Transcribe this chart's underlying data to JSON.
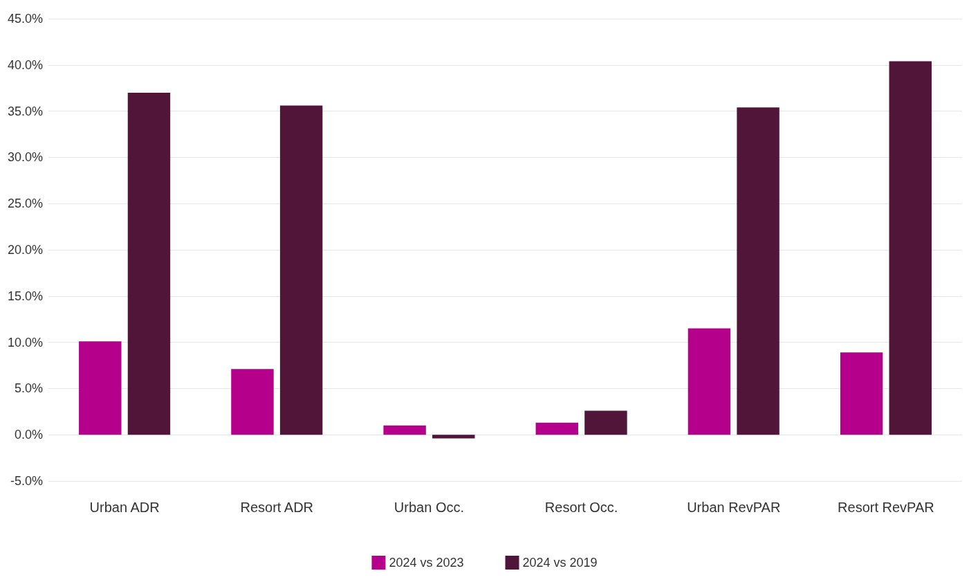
{
  "chart_data": {
    "type": "bar",
    "categories": [
      "Urban ADR",
      "Resort ADR",
      "Urban Occ.",
      "Resort Occ.",
      "Urban RevPAR",
      "Resort RevPAR"
    ],
    "series": [
      {
        "name": "2024 vs 2023",
        "color": "#b5008c",
        "values": [
          10.1,
          7.1,
          1.0,
          1.3,
          11.5,
          8.9
        ]
      },
      {
        "name": "2024 vs 2019",
        "color": "#52153a",
        "values": [
          37.0,
          35.6,
          -0.4,
          2.6,
          35.4,
          40.4
        ]
      }
    ],
    "ylim": [
      -5,
      45
    ],
    "yticks": [
      {
        "value": -5,
        "label": "-5.0%"
      },
      {
        "value": 0,
        "label": "0.0%"
      },
      {
        "value": 5,
        "label": "5.0%"
      },
      {
        "value": 10,
        "label": "10.0%"
      },
      {
        "value": 15,
        "label": "15.0%"
      },
      {
        "value": 20,
        "label": "20.0%"
      },
      {
        "value": 25,
        "label": "25.0%"
      },
      {
        "value": 30,
        "label": "30.0%"
      },
      {
        "value": 35,
        "label": "35.0%"
      },
      {
        "value": 40,
        "label": "40.0%"
      },
      {
        "value": 45,
        "label": "45.0%"
      }
    ],
    "grid": "y",
    "legend": "bottom"
  }
}
